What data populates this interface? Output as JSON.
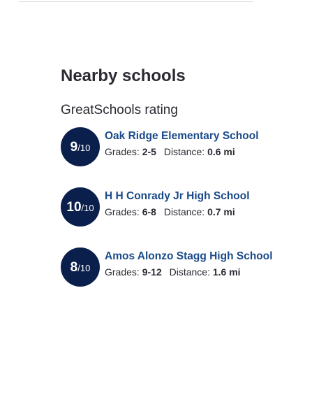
{
  "section": {
    "title": "Nearby schools",
    "subheading": "GreatSchools rating"
  },
  "schools": [
    {
      "rating": "9",
      "rating_scale": "/10",
      "name": "Oak Ridge Elementary School",
      "grades_label": "Grades:",
      "grades": "2-5",
      "distance_label": "Distance:",
      "distance": "0.6 mi"
    },
    {
      "rating": "10",
      "rating_scale": "/10",
      "name": "H H Conrady Jr High School",
      "grades_label": "Grades:",
      "grades": "6-8",
      "distance_label": "Distance:",
      "distance": "0.7 mi"
    },
    {
      "rating": "8",
      "rating_scale": "/10",
      "name": "Amos Alonzo Stagg High School",
      "grades_label": "Grades:",
      "grades": "9-12",
      "distance_label": "Distance:",
      "distance": "1.6 mi"
    }
  ],
  "colors": {
    "badge_background": "#0b1f4d",
    "link": "#1a4a8a",
    "text": "#2a2a33"
  }
}
